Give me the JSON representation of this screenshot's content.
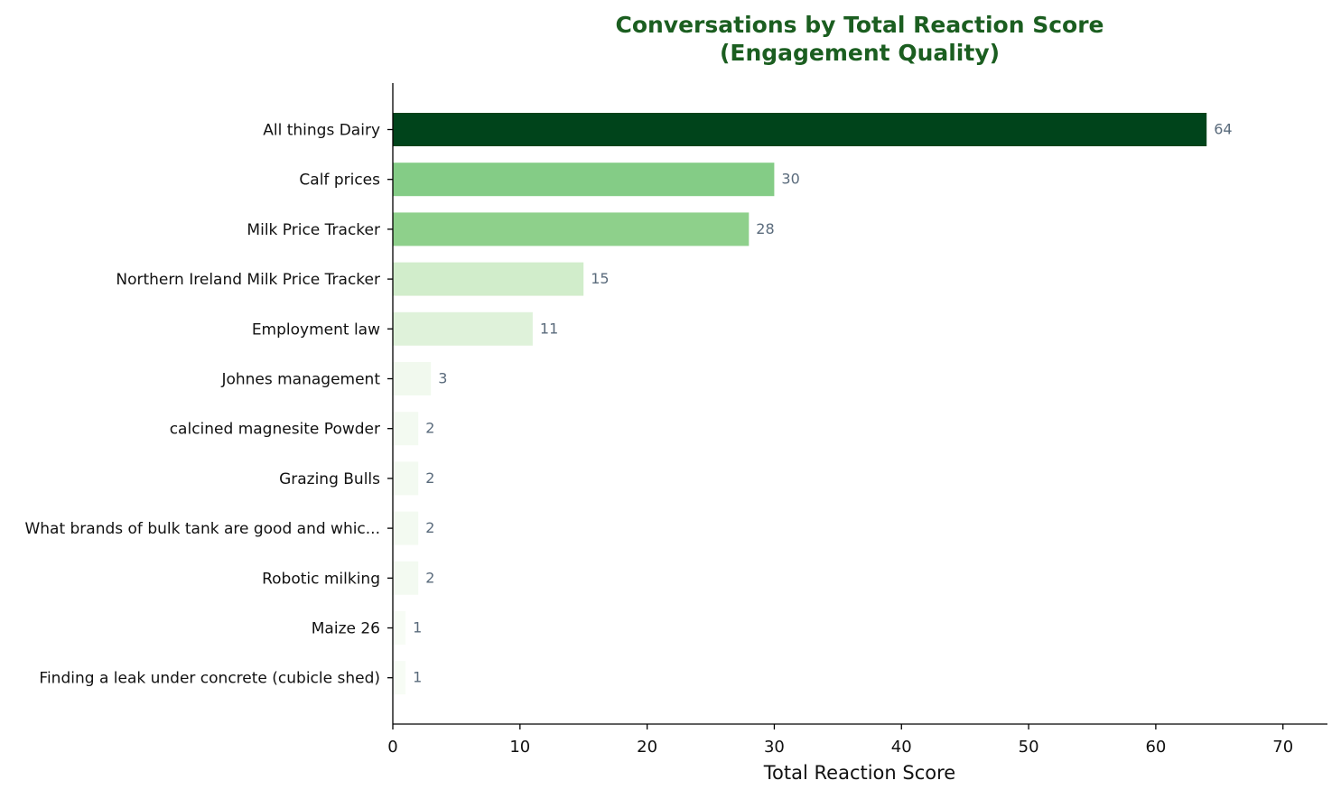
{
  "chart_data": {
    "type": "bar",
    "orientation": "horizontal",
    "title_lines": [
      "Conversations by Total Reaction Score",
      "(Engagement Quality)"
    ],
    "xlabel": "Total Reaction Score",
    "ylabel": "",
    "xlim": [
      0,
      73.5
    ],
    "xticks": [
      0,
      10,
      20,
      30,
      40,
      50,
      60,
      70
    ],
    "grid": false,
    "categories": [
      "All things Dairy",
      "Calf prices",
      "Milk Price Tracker",
      "Northern Ireland Milk Price Tracker",
      "Employment law",
      "Johnes management",
      "calcined magnesite Powder",
      "Grazing Bulls",
      "What brands of bulk tank are good and whic...",
      "Robotic milking",
      "Maize 26",
      "Finding a leak under concrete (cubicle shed)"
    ],
    "values": [
      64,
      30,
      28,
      15,
      11,
      3,
      2,
      2,
      2,
      2,
      1,
      1
    ],
    "colors": [
      "#00441b",
      "#84cc86",
      "#8ed08b",
      "#d1edcb",
      "#dff2da",
      "#f1f9ee",
      "#f3faf1",
      "#f3faf1",
      "#f3faf1",
      "#f3faf1",
      "#f7fcf5",
      "#f7fcf5"
    ],
    "title_color": "#1b5e20",
    "value_label_color": "#5a6b7c"
  }
}
